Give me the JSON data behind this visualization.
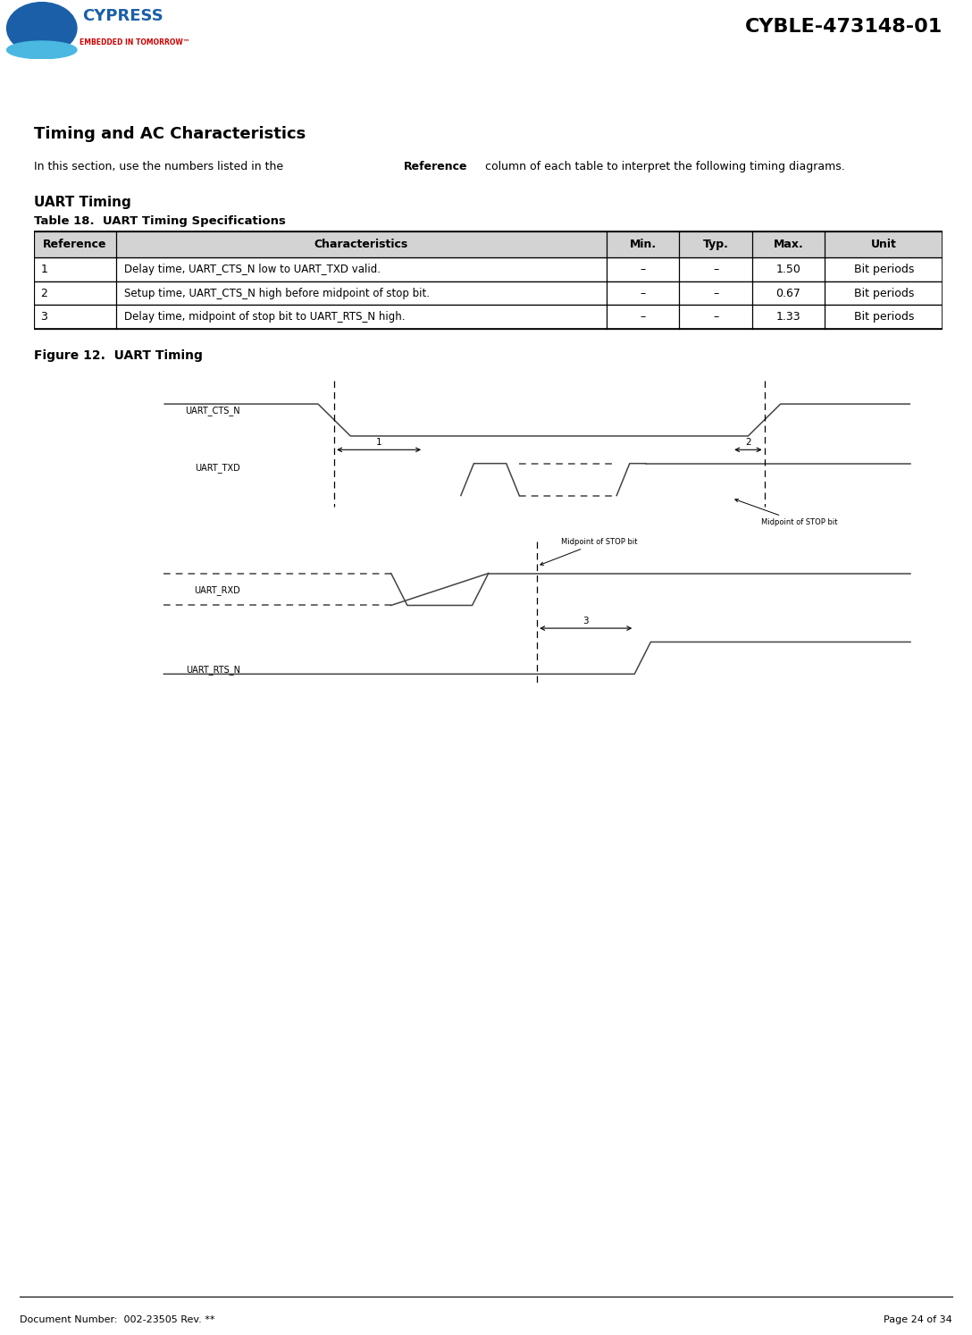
{
  "title_header": "CYBLE-473148-01",
  "doc_number": "Document Number:  002-23505 Rev. **",
  "page_info": "Page 24 of 34",
  "section_title": "Timing and AC Characteristics",
  "section_intro_pre": "In this section, use the numbers listed in the ",
  "section_intro_bold": "Reference",
  "section_intro_post": " column of each table to interpret the following timing diagrams.",
  "subsection_title": "UART Timing",
  "table_title": "Table 18.  UART Timing Specifications",
  "figure_title": "Figure 12.  UART Timing",
  "table_headers": [
    "Reference",
    "Characteristics",
    "Min.",
    "Typ.",
    "Max.",
    "Unit"
  ],
  "table_rows": [
    [
      "1",
      "Delay time, UART_CTS_N low to UART_TXD valid.",
      "–",
      "–",
      "1.50",
      "Bit periods"
    ],
    [
      "2",
      "Setup time, UART_CTS_N high before midpoint of stop bit.",
      "–",
      "–",
      "0.67",
      "Bit periods"
    ],
    [
      "3",
      "Delay time, midpoint of stop bit to UART_RTS_N high.",
      "–",
      "–",
      "1.33",
      "Bit periods"
    ]
  ],
  "header_bg": "#d3d3d3",
  "header_bar_color": "#1a3a6b",
  "background": "#ffffff",
  "signal_color": "#555555",
  "cypress_blue": "#1a5fa8",
  "cypress_red": "#cc0000",
  "cypress_light_blue": "#4ab8e0"
}
